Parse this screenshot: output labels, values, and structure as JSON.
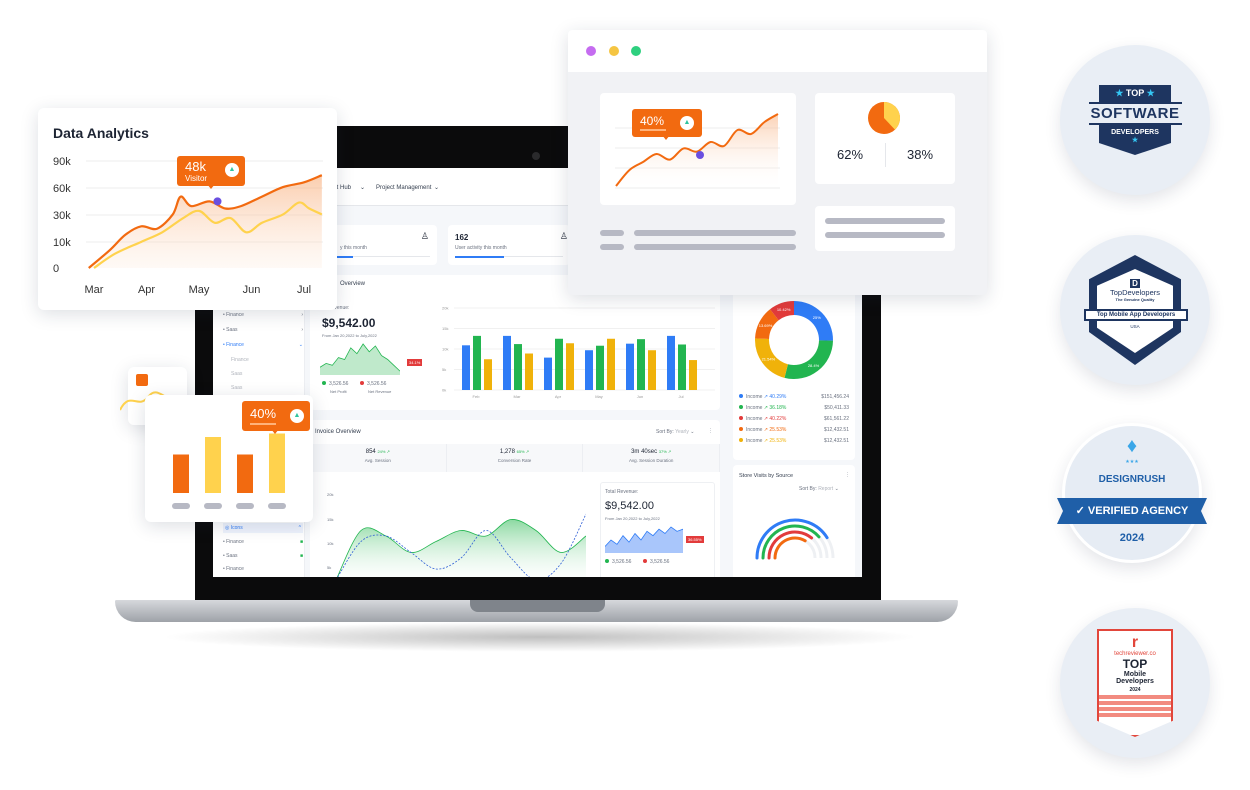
{
  "colors": {
    "orange": "#f26a10",
    "yellow": "#ffd24d",
    "blue": "#2f7cf6",
    "green": "#22b550",
    "amber": "#f0b20a",
    "red": "#e23b3b",
    "purple": "#6a4fe0",
    "navy": "#1e3560"
  },
  "analytics_card": {
    "title": "Data Analytics",
    "tooltip": {
      "value": "48k",
      "label": "Visitor",
      "icon": "triangle-up-icon"
    },
    "chart_data": {
      "type": "line",
      "title": "Data Analytics",
      "categories": [
        "Mar",
        "Apr",
        "May",
        "Jun",
        "Jul"
      ],
      "y_ticks": [
        "90k",
        "60k",
        "30k",
        "10k",
        "0"
      ],
      "ylim": [
        0,
        90
      ],
      "grid": true,
      "series": [
        {
          "color": "#f26a10",
          "x": [
            -0.1,
            0.3,
            0.6,
            0.9,
            1.2,
            1.5,
            1.65,
            1.85,
            2.2,
            2.5,
            2.8,
            3.2,
            3.6,
            4.0,
            4.34
          ],
          "y": [
            0,
            15,
            28,
            35,
            33,
            45,
            60,
            52,
            56,
            50,
            52,
            60,
            68,
            72,
            78
          ]
        },
        {
          "color": "#ffd24d",
          "x": [
            0,
            0.4,
            0.9,
            1.3,
            1.7,
            2.0,
            2.3,
            2.6,
            2.9,
            3.2,
            3.6,
            3.9,
            4.1,
            4.34
          ],
          "y": [
            0,
            12,
            22,
            30,
            42,
            48,
            38,
            42,
            30,
            38,
            45,
            55,
            50,
            45
          ]
        }
      ],
      "highlight": {
        "x": 2.2,
        "y": 56
      }
    }
  },
  "bar_card": {
    "tooltip": {
      "value": "40%",
      "icon": "triangle-up-icon"
    },
    "bars": [
      {
        "level": 0.55,
        "color": "#f26a10"
      },
      {
        "level": 0.8,
        "color": "#ffd24d"
      },
      {
        "level": 0.55,
        "color": "#f26a10"
      },
      {
        "level": 0.85,
        "color": "#ffd24d"
      }
    ]
  },
  "browser": {
    "dots": [
      "#c56cf0",
      "#f5c542",
      "#2ed07f"
    ],
    "tooltip": {
      "value": "40%",
      "icon": "triangle-up-icon"
    },
    "mini_line": {
      "x": [
        0,
        1,
        2,
        3,
        4,
        5,
        6,
        7,
        8,
        9,
        10,
        11,
        12
      ],
      "y": [
        5,
        25,
        35,
        45,
        38,
        52,
        48,
        60,
        55,
        75,
        70,
        85,
        95
      ]
    },
    "pie": {
      "a": "62%",
      "b": "38%",
      "values": [
        62,
        38
      ]
    }
  },
  "dashboard": {
    "nav": [
      "ent Hub",
      "Project Management"
    ],
    "stats": [
      {
        "value": "",
        "label": "y this month",
        "progress": 0.6
      },
      {
        "value": "162",
        "label": "User activity this month",
        "progress": 0.4
      }
    ],
    "sidebar": {
      "top": [
        "Finance",
        "Saas",
        "Finance"
      ],
      "sub": [
        "Finance",
        "Saas",
        "Saas"
      ],
      "icons_label": "Icons",
      "bottom": [
        "Finance",
        "Saas",
        "Finance"
      ]
    },
    "revenue": {
      "title": "Overview",
      "label": "Revenue:",
      "amount": "$9,542.00",
      "range": "From Jan 20,2022 to July,2022",
      "badge": "34.1%",
      "profit": "3,526.56",
      "profit_label": "Net Profit",
      "net": "3,526.56",
      "net_label": "Net Revenue",
      "spark": [
        4,
        6,
        5,
        9,
        8,
        14,
        11,
        16,
        12,
        15,
        10,
        8,
        5,
        2
      ]
    },
    "bar_chart": {
      "type": "bar",
      "categories": [
        "Feb",
        "Mar",
        "Apr",
        "May",
        "Jun",
        "Jul"
      ],
      "y_ticks": [
        "20k",
        "15k",
        "10k",
        "5k",
        "0k"
      ],
      "ylim": [
        0,
        20
      ],
      "series": [
        {
          "color": "#2f7cf6",
          "values": [
            10.9,
            13.2,
            7.9,
            9.7,
            11.3,
            13.2
          ]
        },
        {
          "color": "#22b550",
          "values": [
            13.2,
            11.2,
            12.5,
            10.8,
            12.4,
            11.1
          ]
        },
        {
          "color": "#f0b20a",
          "values": [
            7.5,
            8.9,
            11.4,
            12.5,
            9.7,
            7.3
          ]
        }
      ]
    },
    "donut": {
      "type": "pie",
      "slices": [
        {
          "label": "25%",
          "value": 25,
          "color": "#2f7cf6"
        },
        {
          "label": "28.4%",
          "value": 28.4,
          "color": "#22b550"
        },
        {
          "label": "21.54%",
          "value": 21.54,
          "color": "#f0b20a"
        },
        {
          "label": "13.69%",
          "value": 13.69,
          "color": "#f26a10"
        },
        {
          "label": "10.42%",
          "value": 10.42,
          "color": "#e23b3b"
        }
      ],
      "legend": [
        {
          "name": "Income",
          "pct": "40.29%",
          "amount": "$151,456.24",
          "color": "#2f7cf6"
        },
        {
          "name": "Income",
          "pct": "36.18%",
          "amount": "$50,411.33",
          "color": "#22b550"
        },
        {
          "name": "Income",
          "pct": "40.22%",
          "amount": "$61,561.22",
          "color": "#e23b3b"
        },
        {
          "name": "Income",
          "pct": "25.53%",
          "amount": "$12,432.51",
          "color": "#f26a10"
        },
        {
          "name": "Income",
          "pct": "25.53%",
          "amount": "$12,432.51",
          "color": "#f0b20a"
        }
      ]
    },
    "invoice": {
      "title": "Invoice Overview",
      "sort_label": "Sort By:",
      "sort_value": "Yearly",
      "metrics": [
        {
          "value": "854",
          "delta": "24%",
          "label": "Avg. Session"
        },
        {
          "value": "1,278",
          "delta": "65%",
          "label": "Conversion Rate"
        },
        {
          "value": "3m 40sec",
          "delta": "37%",
          "label": "Avg. Session Duration"
        }
      ],
      "y_ticks": [
        "20k",
        "15k",
        "10k",
        "5k",
        "0k"
      ],
      "area": {
        "x": [
          0,
          1,
          2,
          3,
          4,
          5,
          6,
          7,
          8,
          9,
          10
        ],
        "y": [
          0,
          9,
          8,
          5,
          7,
          9,
          8,
          11,
          9,
          5,
          8
        ]
      },
      "dashed": {
        "x": [
          0,
          1,
          2,
          3,
          4,
          5,
          6,
          7,
          8,
          9,
          10
        ],
        "y": [
          0,
          7,
          8,
          5,
          2,
          4,
          9,
          4,
          0,
          3,
          12
        ]
      },
      "total": {
        "label": "Total Revenue:",
        "amount": "$9,542.00",
        "range": "From Jan 20,2022 to July,2022",
        "badge": "36.55%",
        "a": "3,526.56",
        "b": "3,526.56",
        "spark": [
          3,
          6,
          4,
          8,
          5,
          9,
          6,
          10,
          8,
          11,
          9,
          12,
          10,
          11
        ]
      }
    },
    "store": {
      "title": "Store Visits by Source",
      "sort_label": "Sort By:",
      "sort_value": "Report",
      "arcs": [
        {
          "color": "#2f7cf6",
          "level": 1
        },
        {
          "color": "#22b550",
          "level": 1
        },
        {
          "color": "#e23b3b",
          "level": 1
        },
        {
          "color": "#f26a10",
          "level": 1
        }
      ]
    }
  },
  "badges": [
    {
      "top": "TOP",
      "main": "SOFTWARE",
      "sub": "DEVELOPERS"
    },
    {
      "logo": "D",
      "main": "TopDevelopers",
      "tag": "The Genuine Quality",
      "ribbon": "Top Mobile App Developers",
      "country": "USA"
    },
    {
      "main": "DESIGNRUSH",
      "ribbon": "VERIFIED AGENCY",
      "year": "2024"
    },
    {
      "site": "techreviewer.co",
      "top": "TOP",
      "l1": "Mobile",
      "l2": "Developers",
      "year": "2024"
    }
  ]
}
